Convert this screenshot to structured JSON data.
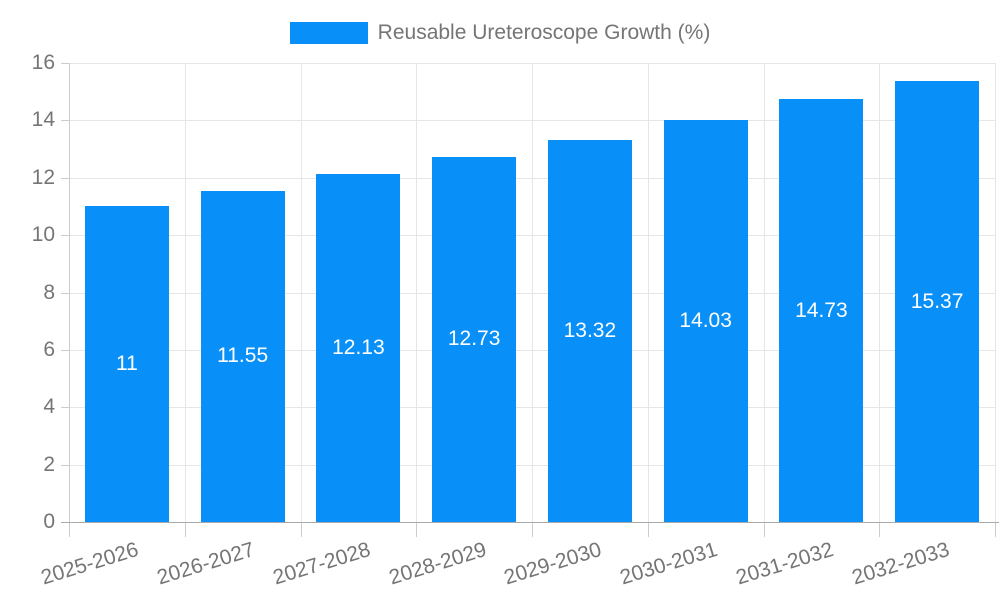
{
  "chart_data": {
    "type": "bar",
    "title": "",
    "legend_label": "Reusable Ureteroscope Growth (%)",
    "legend_position": "top",
    "categories": [
      "2025-2026",
      "2026-2027",
      "2027-2028",
      "2028-2029",
      "2029-2030",
      "2030-2031",
      "2031-2032",
      "2032-2033"
    ],
    "values": [
      11,
      11.55,
      12.13,
      12.73,
      13.32,
      14.03,
      14.73,
      15.37
    ],
    "value_labels": [
      "11",
      "11.55",
      "12.13",
      "12.73",
      "13.32",
      "14.03",
      "14.73",
      "15.37"
    ],
    "xlabel": "",
    "ylabel": "",
    "ylim": [
      0,
      16
    ],
    "yticks": [
      0,
      2,
      4,
      6,
      8,
      10,
      12,
      14,
      16
    ],
    "grid": true,
    "colors": {
      "bar": "#0990f8",
      "grid": "#e6e6e6",
      "axis_line": "#aaaaaa",
      "minor_axis": "#cccccc",
      "text": "#757575",
      "value_text": "#ffffff",
      "background": "#ffffff"
    }
  }
}
